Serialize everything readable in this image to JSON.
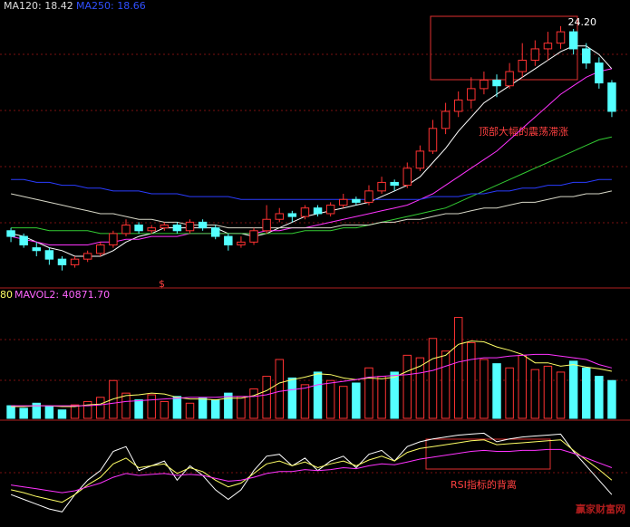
{
  "watermark": "赢家财富网",
  "chart_data": [
    {
      "type": "candlestick",
      "header": [
        "MA120: 18.42",
        "MA250: 18.66"
      ],
      "annotation": "顶部大幅的震荡滞涨",
      "peak_label": {
        "value": 24.2,
        "label": "24.20"
      },
      "marker": "$",
      "up_color": "#ff3232",
      "down_color": "#54ffff",
      "ylim": [
        15.4,
        24.8
      ],
      "open": [
        17.0,
        16.8,
        16.4,
        16.3,
        16.0,
        15.8,
        16.0,
        16.2,
        16.5,
        16.9,
        17.2,
        17.0,
        17.1,
        17.2,
        17.0,
        17.3,
        17.1,
        16.8,
        16.5,
        16.6,
        17.0,
        17.4,
        17.6,
        17.5,
        17.8,
        17.6,
        17.9,
        18.1,
        18.0,
        18.4,
        18.7,
        18.6,
        19.2,
        19.8,
        20.6,
        21.2,
        21.6,
        22.0,
        22.3,
        22.1,
        22.6,
        23.0,
        23.4,
        23.6,
        24.0,
        23.4,
        22.9,
        22.2
      ],
      "high": [
        17.1,
        16.9,
        16.6,
        16.4,
        16.1,
        16.1,
        16.3,
        16.6,
        17.0,
        17.4,
        17.3,
        17.2,
        17.3,
        17.3,
        17.4,
        17.4,
        17.2,
        16.9,
        16.8,
        17.1,
        17.9,
        17.8,
        17.7,
        17.9,
        17.9,
        18.0,
        18.3,
        18.2,
        18.6,
        18.9,
        18.8,
        19.4,
        20.0,
        20.9,
        21.5,
        21.9,
        22.4,
        22.6,
        22.5,
        22.9,
        23.6,
        23.7,
        24.0,
        24.2,
        24.1,
        23.6,
        23.1,
        22.3
      ],
      "low": [
        16.6,
        16.4,
        16.1,
        15.8,
        15.6,
        15.7,
        15.9,
        16.1,
        16.4,
        16.8,
        16.9,
        16.9,
        17.0,
        16.9,
        16.9,
        17.0,
        16.7,
        16.3,
        16.4,
        16.5,
        16.9,
        17.3,
        17.3,
        17.4,
        17.5,
        17.5,
        17.8,
        17.9,
        17.9,
        18.3,
        18.4,
        18.5,
        19.1,
        19.7,
        20.4,
        21.0,
        21.3,
        21.8,
        21.7,
        22.0,
        22.4,
        22.8,
        23.0,
        23.4,
        23.2,
        22.7,
        22.0,
        21.0
      ],
      "close": [
        16.8,
        16.5,
        16.3,
        16.0,
        15.8,
        16.0,
        16.2,
        16.5,
        16.9,
        17.2,
        17.0,
        17.1,
        17.2,
        17.0,
        17.3,
        17.1,
        16.8,
        16.5,
        16.6,
        17.0,
        17.4,
        17.6,
        17.5,
        17.8,
        17.6,
        17.9,
        18.1,
        18.0,
        18.4,
        18.7,
        18.6,
        19.2,
        19.8,
        20.6,
        21.2,
        21.6,
        22.0,
        22.3,
        22.1,
        22.6,
        23.0,
        23.4,
        23.6,
        24.0,
        23.4,
        22.9,
        22.2,
        21.2
      ],
      "series": [
        {
          "color": "#ffffff",
          "values": [
            16.9,
            16.8,
            16.6,
            16.4,
            16.3,
            16.1,
            16.1,
            16.1,
            16.3,
            16.6,
            16.8,
            16.9,
            17.1,
            17.1,
            17.1,
            17.1,
            17.1,
            16.9,
            16.9,
            16.8,
            16.9,
            17.1,
            17.3,
            17.5,
            17.6,
            17.7,
            17.8,
            17.9,
            18.0,
            18.2,
            18.4,
            18.6,
            18.9,
            19.4,
            19.9,
            20.5,
            21.0,
            21.5,
            21.8,
            22.1,
            22.4,
            22.7,
            23.0,
            23.3,
            23.5,
            23.5,
            23.2,
            22.7
          ]
        },
        {
          "color": "#ff33ff",
          "values": [
            16.8,
            16.7,
            16.6,
            16.5,
            16.5,
            16.5,
            16.5,
            16.6,
            16.6,
            16.7,
            16.7,
            16.8,
            16.8,
            16.8,
            16.9,
            16.9,
            16.9,
            16.9,
            16.9,
            16.9,
            17.0,
            17.0,
            17.1,
            17.1,
            17.2,
            17.3,
            17.4,
            17.5,
            17.6,
            17.7,
            17.8,
            17.9,
            18.1,
            18.3,
            18.6,
            18.9,
            19.2,
            19.5,
            19.8,
            20.2,
            20.6,
            21.0,
            21.4,
            21.8,
            22.1,
            22.4,
            22.6,
            22.7
          ]
        },
        {
          "color": "#33cc33",
          "values": [
            17.1,
            17.1,
            17.1,
            17.0,
            17.0,
            17.0,
            17.0,
            16.9,
            16.9,
            16.9,
            16.9,
            16.9,
            16.9,
            16.9,
            16.9,
            16.9,
            16.9,
            16.9,
            16.9,
            16.9,
            16.9,
            16.9,
            16.9,
            17.0,
            17.0,
            17.0,
            17.1,
            17.1,
            17.2,
            17.3,
            17.4,
            17.5,
            17.6,
            17.7,
            17.8,
            18.0,
            18.2,
            18.4,
            18.6,
            18.8,
            19.0,
            19.2,
            19.4,
            19.6,
            19.8,
            20.0,
            20.2,
            20.3
          ]
        },
        {
          "color": "#2a3cff",
          "values": [
            18.8,
            18.8,
            18.7,
            18.7,
            18.6,
            18.6,
            18.5,
            18.5,
            18.4,
            18.4,
            18.4,
            18.3,
            18.3,
            18.3,
            18.2,
            18.2,
            18.2,
            18.2,
            18.1,
            18.1,
            18.1,
            18.1,
            18.1,
            18.1,
            18.1,
            18.1,
            18.1,
            18.1,
            18.1,
            18.1,
            18.1,
            18.1,
            18.1,
            18.2,
            18.2,
            18.2,
            18.3,
            18.3,
            18.4,
            18.4,
            18.5,
            18.5,
            18.6,
            18.6,
            18.7,
            18.7,
            18.8,
            18.8
          ]
        },
        {
          "color": "#d8d8c8",
          "values": [
            18.3,
            18.2,
            18.1,
            18.0,
            17.9,
            17.8,
            17.7,
            17.6,
            17.6,
            17.5,
            17.4,
            17.4,
            17.3,
            17.3,
            17.2,
            17.2,
            17.2,
            17.1,
            17.1,
            17.1,
            17.1,
            17.1,
            17.1,
            17.1,
            17.1,
            17.1,
            17.2,
            17.2,
            17.2,
            17.3,
            17.3,
            17.4,
            17.4,
            17.5,
            17.6,
            17.6,
            17.7,
            17.8,
            17.8,
            17.9,
            18.0,
            18.0,
            18.1,
            18.2,
            18.2,
            18.3,
            18.3,
            18.4
          ]
        }
      ]
    },
    {
      "type": "volume",
      "header": [
        "80",
        "MAVOL2: 40871.70"
      ],
      "ylim": [
        0,
        140000
      ],
      "values": [
        15000,
        12000,
        18000,
        14000,
        10000,
        16000,
        20000,
        25000,
        45000,
        30000,
        22000,
        28000,
        20000,
        26000,
        18000,
        24000,
        22000,
        30000,
        26000,
        35000,
        50000,
        70000,
        48000,
        40000,
        55000,
        45000,
        38000,
        42000,
        60000,
        50000,
        55000,
        75000,
        72000,
        95000,
        80000,
        120000,
        90000,
        70000,
        65000,
        60000,
        75000,
        58000,
        62000,
        55000,
        68000,
        60000,
        50000,
        45000
      ],
      "series": [
        {
          "color": "#ffff66",
          "values": [
            14000,
            14000,
            15000,
            15000,
            14000,
            14000,
            16000,
            17000,
            23000,
            27000,
            28000,
            30000,
            29000,
            25000,
            23000,
            23000,
            22000,
            24000,
            24000,
            27000,
            33000,
            42000,
            46000,
            49000,
            53000,
            52000,
            48000,
            46000,
            48000,
            47000,
            49000,
            56000,
            62000,
            71000,
            75000,
            88000,
            92000,
            91000,
            85000,
            81000,
            76000,
            66000,
            66000,
            62000,
            64000,
            61000,
            59000,
            56000
          ]
        },
        {
          "color": "#ff33ff",
          "values": [
            15000,
            15000,
            15000,
            15000,
            15000,
            15000,
            15000,
            16000,
            18000,
            20000,
            21000,
            22000,
            23000,
            24000,
            25000,
            25000,
            25000,
            26000,
            26000,
            26000,
            28000,
            32000,
            34000,
            36000,
            40000,
            42000,
            44000,
            46000,
            49000,
            50000,
            51000,
            52000,
            54000,
            57000,
            62000,
            67000,
            70000,
            72000,
            72000,
            74000,
            75000,
            76000,
            76000,
            74000,
            72000,
            70000,
            64000,
            60000
          ]
        }
      ]
    },
    {
      "type": "line",
      "annotation": "RSI指标的背离",
      "ylim": [
        0,
        100
      ],
      "series": [
        {
          "color": "#ffffff",
          "values": [
            30,
            25,
            20,
            15,
            12,
            30,
            45,
            55,
            75,
            80,
            55,
            60,
            65,
            45,
            60,
            50,
            35,
            25,
            35,
            55,
            70,
            72,
            60,
            68,
            55,
            65,
            70,
            58,
            72,
            76,
            65,
            80,
            85,
            88,
            90,
            92,
            93,
            94,
            85,
            88,
            90,
            91,
            92,
            93,
            75,
            60,
            45,
            30
          ]
        },
        {
          "color": "#ffff66",
          "values": [
            35,
            32,
            28,
            25,
            22,
            30,
            40,
            48,
            62,
            68,
            58,
            60,
            62,
            52,
            58,
            54,
            45,
            38,
            42,
            52,
            62,
            65,
            60,
            64,
            58,
            62,
            65,
            60,
            66,
            70,
            65,
            74,
            78,
            80,
            82,
            84,
            86,
            87,
            82,
            83,
            84,
            85,
            86,
            87,
            76,
            66,
            56,
            45
          ]
        },
        {
          "color": "#ff33ff",
          "values": [
            40,
            38,
            36,
            34,
            32,
            34,
            38,
            42,
            48,
            52,
            50,
            51,
            52,
            50,
            51,
            50,
            47,
            44,
            45,
            48,
            52,
            54,
            54,
            56,
            55,
            56,
            58,
            57,
            60,
            62,
            61,
            64,
            67,
            69,
            71,
            73,
            75,
            76,
            75,
            75,
            76,
            76,
            77,
            77,
            73,
            68,
            63,
            58
          ]
        }
      ]
    }
  ]
}
